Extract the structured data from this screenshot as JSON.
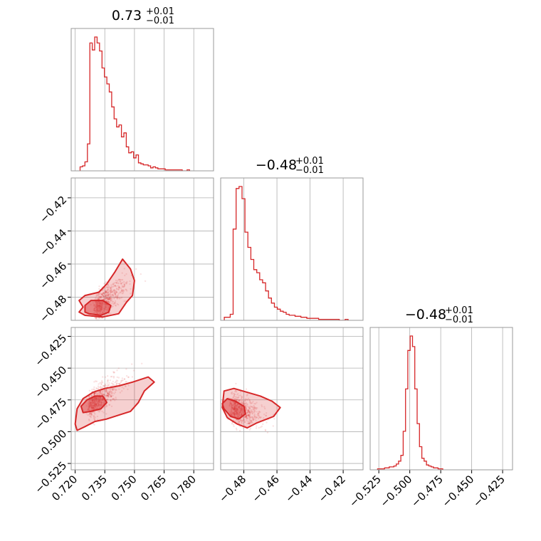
{
  "chart_data": {
    "type": "corner",
    "color": "#d62728",
    "frame_color": "#999999",
    "grid": true,
    "panels": [
      {
        "kind": "hist",
        "param": 0,
        "title": {
          "main": "0.73",
          "plus": "+0.01",
          "minus": "−0.01"
        },
        "xlim": [
          0.718,
          0.79
        ],
        "bins_start": 0.7225,
        "bin_width": 0.00123,
        "counts": [
          4,
          5,
          9,
          27,
          128,
          121,
          134,
          128,
          120,
          103,
          94,
          87,
          79,
          64,
          52,
          44,
          46,
          34,
          38,
          24,
          18,
          19,
          13,
          16,
          8,
          7,
          6,
          6,
          5,
          3,
          4,
          3,
          2,
          2,
          2,
          1,
          1,
          1,
          1,
          1,
          1,
          1,
          0,
          0,
          1
        ]
      },
      {
        "kind": "hist",
        "param": 1,
        "title": {
          "main": "−0.48",
          "plus": "+0.01",
          "minus": "−0.01"
        },
        "xlim": [
          -0.494,
          -0.408
        ],
        "bins_start": -0.4918,
        "bin_width": 0.00178,
        "counts": [
          3,
          3,
          6,
          90,
          130,
          132,
          120,
          87,
          72,
          60,
          50,
          47,
          40,
          37,
          29,
          22,
          17,
          13,
          11,
          9,
          8,
          6,
          5,
          5,
          4,
          4,
          3,
          3,
          2,
          2,
          2,
          2,
          1,
          1,
          1,
          1,
          1,
          1,
          1,
          0,
          0,
          1
        ]
      },
      {
        "kind": "hist",
        "param": 2,
        "title": {
          "main": "−0.48",
          "plus": "+0.01",
          "minus": "−0.01"
        },
        "xlim": [
          -0.532,
          -0.417
        ],
        "bins_start": -0.526,
        "bin_width": 0.00188,
        "counts": [
          1,
          1,
          1,
          2,
          2,
          3,
          3,
          4,
          6,
          9,
          15,
          40,
          84,
          124,
          139,
          128,
          84,
          48,
          24,
          12,
          9,
          5,
          4,
          3,
          2,
          2,
          1,
          1
        ]
      },
      {
        "kind": "contour",
        "x_param": 0,
        "y_param": 1,
        "xlim": [
          0.718,
          0.79
        ],
        "ylim": [
          -0.494,
          -0.408
        ],
        "peak": [
          0.73,
          -0.487
        ],
        "levels": [
          {
            "label": "inner",
            "points": [
              [
                0.727,
                -0.49
              ],
              [
                0.733,
                -0.491
              ],
              [
                0.737,
                -0.489
              ],
              [
                0.738,
                -0.485
              ],
              [
                0.734,
                -0.482
              ],
              [
                0.728,
                -0.482
              ],
              [
                0.725,
                -0.485
              ],
              [
                0.725,
                -0.489
              ]
            ]
          },
          {
            "label": "outer",
            "points": [
              [
                0.725,
                -0.491
              ],
              [
                0.734,
                -0.492
              ],
              [
                0.742,
                -0.49
              ],
              [
                0.746,
                -0.483
              ],
              [
                0.749,
                -0.479
              ],
              [
                0.75,
                -0.47
              ],
              [
                0.748,
                -0.463
              ],
              [
                0.744,
                -0.457
              ],
              [
                0.74,
                -0.465
              ],
              [
                0.736,
                -0.472
              ],
              [
                0.732,
                -0.477
              ],
              [
                0.725,
                -0.479
              ],
              [
                0.722,
                -0.482
              ],
              [
                0.724,
                -0.486
              ],
              [
                0.722,
                -0.489
              ]
            ]
          }
        ]
      },
      {
        "kind": "contour",
        "x_param": 0,
        "y_param": 2,
        "xlim": [
          0.718,
          0.79
        ],
        "ylim": [
          -0.53,
          -0.418
        ],
        "peak": [
          0.727,
          -0.481
        ],
        "levels": [
          {
            "label": "inner",
            "points": [
              [
                0.724,
                -0.485
              ],
              [
                0.728,
                -0.484
              ],
              [
                0.733,
                -0.482
              ],
              [
                0.736,
                -0.477
              ],
              [
                0.734,
                -0.472
              ],
              [
                0.73,
                -0.472
              ],
              [
                0.726,
                -0.475
              ],
              [
                0.723,
                -0.48
              ]
            ]
          },
          {
            "label": "outer",
            "points": [
              [
                0.725,
                -0.496
              ],
              [
                0.73,
                -0.492
              ],
              [
                0.736,
                -0.49
              ],
              [
                0.742,
                -0.487
              ],
              [
                0.748,
                -0.484
              ],
              [
                0.752,
                -0.477
              ],
              [
                0.755,
                -0.468
              ],
              [
                0.76,
                -0.461
              ],
              [
                0.757,
                -0.457
              ],
              [
                0.749,
                -0.461
              ],
              [
                0.742,
                -0.464
              ],
              [
                0.735,
                -0.466
              ],
              [
                0.729,
                -0.469
              ],
              [
                0.724,
                -0.474
              ],
              [
                0.721,
                -0.482
              ],
              [
                0.72,
                -0.494
              ],
              [
                0.721,
                -0.499
              ]
            ]
          }
        ]
      },
      {
        "kind": "contour",
        "x_param": 1,
        "y_param": 2,
        "xlim": [
          -0.494,
          -0.408
        ],
        "ylim": [
          -0.53,
          -0.418
        ],
        "peak": [
          -0.488,
          -0.481
        ],
        "levels": [
          {
            "label": "inner",
            "points": [
              [
                -0.492,
                -0.482
              ],
              [
                -0.488,
                -0.488
              ],
              [
                -0.483,
                -0.49
              ],
              [
                -0.479,
                -0.486
              ],
              [
                -0.48,
                -0.48
              ],
              [
                -0.485,
                -0.476
              ],
              [
                -0.49,
                -0.474
              ],
              [
                -0.493,
                -0.478
              ]
            ]
          },
          {
            "label": "outer",
            "points": [
              [
                -0.492,
                -0.468
              ],
              [
                -0.486,
                -0.466
              ],
              [
                -0.478,
                -0.469
              ],
              [
                -0.47,
                -0.472
              ],
              [
                -0.463,
                -0.476
              ],
              [
                -0.458,
                -0.481
              ],
              [
                -0.462,
                -0.488
              ],
              [
                -0.472,
                -0.493
              ],
              [
                -0.478,
                -0.497
              ],
              [
                -0.484,
                -0.494
              ],
              [
                -0.49,
                -0.489
              ],
              [
                -0.493,
                -0.481
              ]
            ]
          }
        ]
      }
    ],
    "tick_labels": {
      "x0": [
        [
          "0.720",
          0.72
        ],
        [
          "0.735",
          0.735
        ],
        [
          "0.750",
          0.75
        ],
        [
          "0.765",
          0.765
        ],
        [
          "0.780",
          0.78
        ]
      ],
      "x1": [
        [
          "−0.48",
          -0.48
        ],
        [
          "−0.46",
          -0.46
        ],
        [
          "−0.44",
          -0.44
        ],
        [
          "−0.42",
          -0.42
        ]
      ],
      "x2": [
        [
          "−0.525",
          -0.525
        ],
        [
          "−0.500",
          -0.5
        ],
        [
          "−0.475",
          -0.475
        ],
        [
          "−0.450",
          -0.45
        ],
        [
          "−0.425",
          -0.425
        ]
      ],
      "y1": [
        [
          "−0.42",
          -0.42
        ],
        [
          "−0.44",
          -0.44
        ],
        [
          "−0.46",
          -0.46
        ],
        [
          "−0.48",
          -0.48
        ]
      ],
      "y2": [
        [
          "−0.425",
          -0.425
        ],
        [
          "−0.450",
          -0.45
        ],
        [
          "−0.475",
          -0.475
        ],
        [
          "−0.500",
          -0.5
        ],
        [
          "−0.525",
          -0.525
        ]
      ]
    }
  }
}
